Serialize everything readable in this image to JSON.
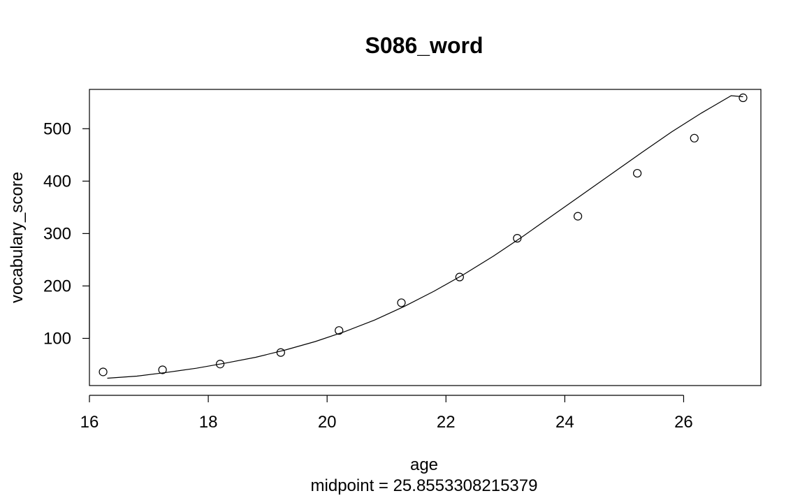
{
  "chart_data": {
    "type": "scatter",
    "title": "S086_word",
    "xlabel": "age",
    "ylabel": "vocabulary_score",
    "subtitle": "midpoint = 25.8553308215379",
    "xlim": [
      16.0,
      27.3
    ],
    "ylim": [
      10,
      575
    ],
    "x_ticks": [
      16,
      18,
      20,
      22,
      24,
      26
    ],
    "x_tick_labels": [
      "16",
      "18",
      "20",
      "22",
      "24",
      "26"
    ],
    "y_ticks": [
      100,
      200,
      300,
      400,
      500
    ],
    "y_tick_labels": [
      "100",
      "200",
      "300",
      "400",
      "500"
    ],
    "grid": false,
    "legend": "none",
    "points": {
      "x": [
        16.23,
        17.23,
        18.2,
        19.22,
        20.2,
        21.25,
        22.23,
        23.2,
        24.22,
        25.22,
        26.18,
        27.0
      ],
      "y": [
        36,
        40,
        51,
        73,
        115,
        168,
        217,
        291,
        333,
        415,
        482,
        559
      ]
    },
    "fit_curve": {
      "x": [
        16.3,
        16.8,
        17.3,
        17.8,
        18.3,
        18.8,
        19.3,
        19.8,
        20.3,
        20.8,
        21.3,
        21.8,
        22.3,
        22.8,
        23.3,
        23.8,
        24.3,
        24.8,
        25.3,
        25.8,
        26.3,
        26.8,
        27.0
      ],
      "y": [
        24,
        28,
        35,
        43,
        53,
        64,
        78,
        94,
        113,
        135,
        161,
        190,
        222,
        257,
        295,
        335,
        375,
        415,
        455,
        494,
        530,
        563,
        561
      ]
    },
    "colors": {
      "points": "#000000",
      "curve": "#000000",
      "axes": "#000000"
    }
  }
}
